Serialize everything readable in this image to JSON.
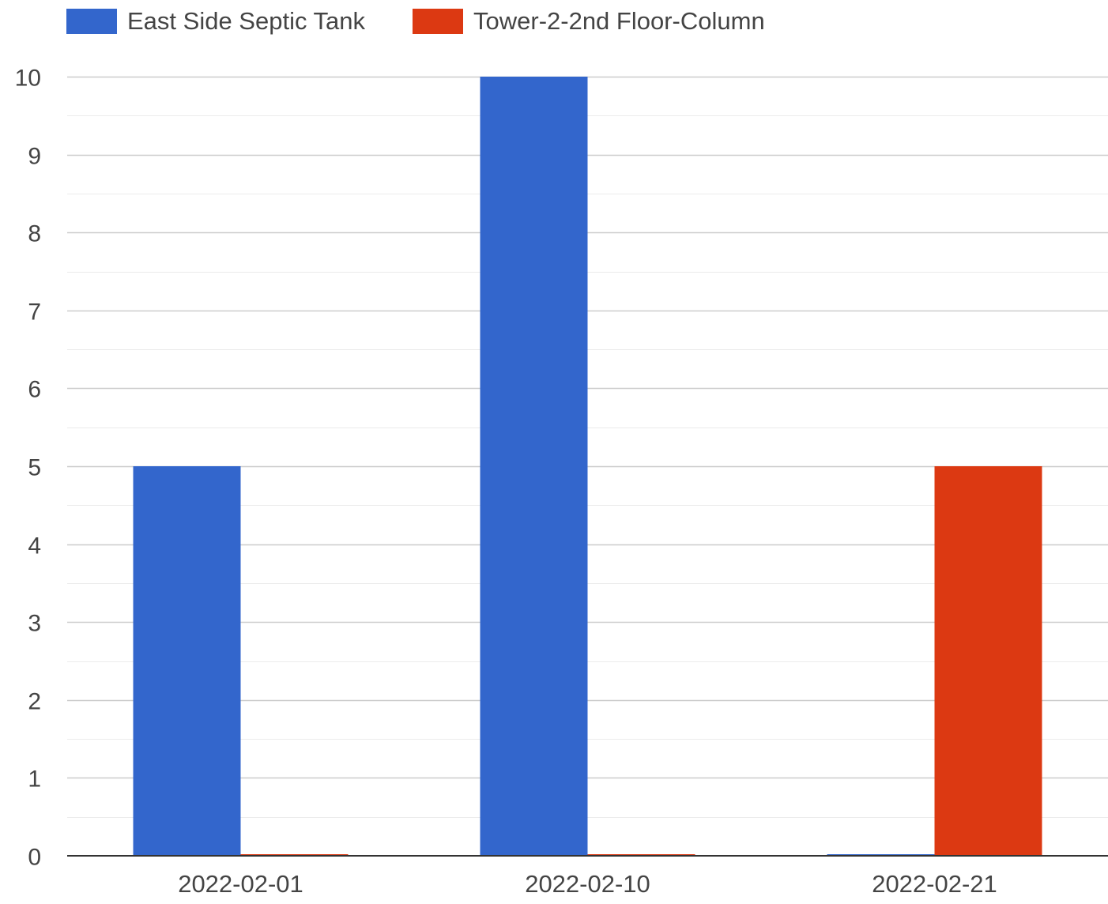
{
  "chart_data": {
    "type": "bar",
    "title": "",
    "xlabel": "",
    "ylabel": "",
    "categories": [
      "2022-02-01",
      "2022-02-10",
      "2022-02-21"
    ],
    "series": [
      {
        "name": "East Side Septic Tank",
        "color": "#3366cc",
        "values": [
          5,
          10,
          0
        ]
      },
      {
        "name": "Tower-2-2nd Floor-Column",
        "color": "#dc3912",
        "values": [
          0,
          0,
          5
        ]
      }
    ],
    "ylim": [
      0,
      10
    ],
    "yticks": [
      "0",
      "1",
      "2",
      "3",
      "4",
      "5",
      "6",
      "7",
      "8",
      "9",
      "10"
    ],
    "grid": true,
    "minor_grid": true,
    "legend_position": "top-left"
  }
}
